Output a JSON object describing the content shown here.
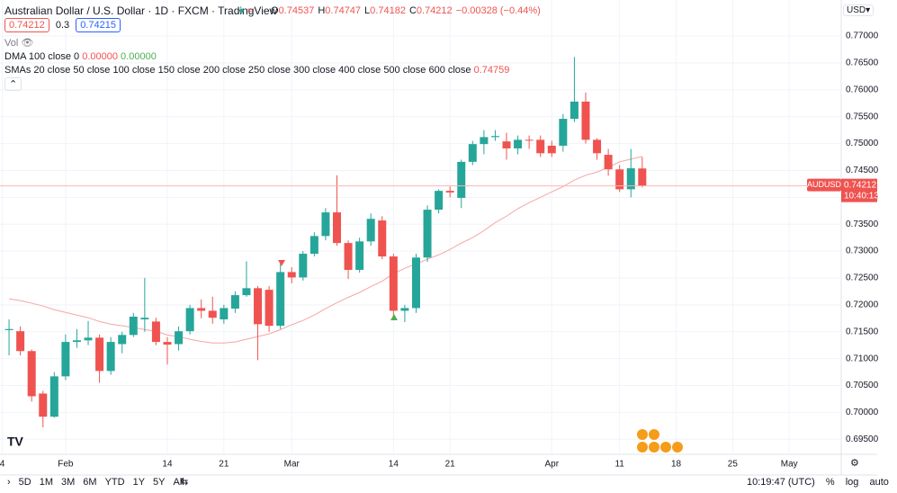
{
  "header": {
    "title": "Australian Dollar / U.S. Dollar · 1D · FXCM · TradingView",
    "ohlc": [
      {
        "k": "O",
        "v": "0.74537"
      },
      {
        "k": "H",
        "v": "0.74747"
      },
      {
        "k": "L",
        "v": "0.74182"
      },
      {
        "k": "C",
        "v": "0.74212"
      }
    ],
    "change": "−0.00328 (−0.44%)",
    "box_bid": "0.74212",
    "spread": "0.3",
    "box_ask": "0.74215",
    "currency": "USD"
  },
  "indicators": {
    "vol": "Vol",
    "dma": "DMA 100 close 0",
    "dma_v1": "0.00000",
    "dma_v2": "0.00000",
    "smas": "SMAs 20 close 50 close 100 close 150 close 200 close 250 close 300 close 400 close 500 close 600 close",
    "smas_v": "0.74759"
  },
  "toolbar": {
    "ranges": [
      "5D",
      "1M",
      "3M",
      "6M",
      "YTD",
      "1Y",
      "5Y",
      "All"
    ],
    "time": "10:19:47 (UTC)",
    "percent": "%",
    "log": "log",
    "auto": "auto"
  },
  "chart_data": {
    "type": "candlestick",
    "symbol": "AUDUSD",
    "open": [
      0.7153,
      0.7151,
      0.7114,
      0.7035,
      0.6992,
      0.7067,
      0.7131,
      0.7134,
      0.7139,
      0.7077,
      0.7127,
      0.7144,
      0.7173,
      0.7169,
      0.7131,
      0.7127,
      0.7151,
      0.7194,
      0.7189,
      0.7173,
      0.7193,
      0.7218,
      0.7231,
      0.7228,
      0.7161,
      0.7261,
      0.7251,
      0.7295,
      0.7328,
      0.7372,
      0.7315,
      0.7265,
      0.7318,
      0.7357,
      0.729,
      0.7189,
      0.7194,
      0.7288,
      0.7377,
      0.7412,
      0.7399,
      0.7466,
      0.7499,
      0.7512,
      0.7504,
      0.7491,
      0.7507,
      0.7507,
      0.7496,
      0.7496,
      0.7546,
      0.7578,
      0.7507,
      0.7479,
      0.7452,
      0.7415,
      0.74537
    ],
    "high": [
      0.7173,
      0.716,
      0.7117,
      0.704,
      0.7075,
      0.7145,
      0.7155,
      0.717,
      0.7145,
      0.714,
      0.715,
      0.7185,
      0.725,
      0.7176,
      0.714,
      0.716,
      0.72,
      0.721,
      0.7215,
      0.72,
      0.7225,
      0.7281,
      0.7235,
      0.7235,
      0.7276,
      0.727,
      0.73,
      0.7335,
      0.738,
      0.7441,
      0.732,
      0.7325,
      0.737,
      0.7365,
      0.7295,
      0.72,
      0.7295,
      0.7385,
      0.7415,
      0.742,
      0.747,
      0.7505,
      0.7525,
      0.7525,
      0.752,
      0.7515,
      0.7515,
      0.7515,
      0.7505,
      0.7555,
      0.7661,
      0.7595,
      0.751,
      0.749,
      0.746,
      0.749,
      0.74747
    ],
    "low": [
      0.7106,
      0.7106,
      0.702,
      0.6972,
      0.699,
      0.706,
      0.712,
      0.7125,
      0.7055,
      0.707,
      0.711,
      0.714,
      0.715,
      0.7125,
      0.7089,
      0.7115,
      0.7145,
      0.7175,
      0.7165,
      0.7165,
      0.7185,
      0.7215,
      0.7097,
      0.715,
      0.7155,
      0.724,
      0.7245,
      0.729,
      0.732,
      0.731,
      0.7248,
      0.726,
      0.731,
      0.7285,
      0.7173,
      0.7168,
      0.7185,
      0.728,
      0.737,
      0.74,
      0.738,
      0.746,
      0.748,
      0.7505,
      0.747,
      0.748,
      0.749,
      0.7475,
      0.7475,
      0.7485,
      0.754,
      0.75,
      0.747,
      0.744,
      0.741,
      0.74,
      0.74182
    ],
    "close": [
      0.7155,
      0.7114,
      0.703,
      0.6992,
      0.7067,
      0.7131,
      0.7134,
      0.7139,
      0.7077,
      0.7131,
      0.7144,
      0.7178,
      0.7176,
      0.7131,
      0.7126,
      0.7151,
      0.7194,
      0.7189,
      0.7176,
      0.7194,
      0.7218,
      0.7231,
      0.7164,
      0.7161,
      0.7261,
      0.7251,
      0.7295,
      0.7328,
      0.7372,
      0.7315,
      0.7265,
      0.7318,
      0.736,
      0.729,
      0.7189,
      0.7194,
      0.7288,
      0.7377,
      0.7412,
      0.7409,
      0.7466,
      0.7499,
      0.7512,
      0.7514,
      0.7491,
      0.7507,
      0.7506,
      0.7482,
      0.7482,
      0.7546,
      0.7578,
      0.7507,
      0.7482,
      0.7452,
      0.7415,
      0.7454,
      0.74212
    ],
    "up_color": "#26a69a",
    "down_color": "#ef5350",
    "sma": {
      "color": "#f4a6a4",
      "values": [
        0.7211,
        0.7208,
        0.7203,
        0.7198,
        0.7191,
        0.7186,
        0.7181,
        0.7176,
        0.7169,
        0.7164,
        0.7161,
        0.7158,
        0.7154,
        0.7151,
        0.7144,
        0.7141,
        0.7136,
        0.7132,
        0.7129,
        0.7129,
        0.7131,
        0.7136,
        0.7141,
        0.7146,
        0.7154,
        0.7163,
        0.7171,
        0.7181,
        0.7193,
        0.7204,
        0.7214,
        0.7223,
        0.7234,
        0.7244,
        0.7258,
        0.7268,
        0.7276,
        0.7285,
        0.7293,
        0.7303,
        0.7315,
        0.7325,
        0.7338,
        0.7353,
        0.7365,
        0.7379,
        0.739,
        0.74,
        0.741,
        0.742,
        0.7432,
        0.7441,
        0.7447,
        0.7456,
        0.7466,
        0.7471,
        0.74759
      ]
    },
    "last_price_label": "0.74212",
    "countdown": "10:40:13",
    "xlim": [
      -0.8,
      73.6
    ],
    "xticks": [
      {
        "value": -0.6,
        "label": "4"
      },
      {
        "value": 5,
        "label": "Feb"
      },
      {
        "value": 14,
        "label": "14"
      },
      {
        "value": 19,
        "label": "21"
      },
      {
        "value": 25,
        "label": "Mar"
      },
      {
        "value": 34,
        "label": "14"
      },
      {
        "value": 39,
        "label": "21"
      },
      {
        "value": 48,
        "label": "Apr"
      },
      {
        "value": 54,
        "label": "11"
      },
      {
        "value": 59,
        "label": "18"
      },
      {
        "value": 64,
        "label": "25"
      },
      {
        "value": 69,
        "label": "May"
      }
    ],
    "ylim": [
      0.6922,
      0.7767
    ],
    "yticks": [
      {
        "value": 0.695,
        "label": "0.69500"
      },
      {
        "value": 0.7,
        "label": "0.70000"
      },
      {
        "value": 0.705,
        "label": "0.70500"
      },
      {
        "value": 0.71,
        "label": "0.71000"
      },
      {
        "value": 0.715,
        "label": "0.71500"
      },
      {
        "value": 0.72,
        "label": "0.72000"
      },
      {
        "value": 0.725,
        "label": "0.72500"
      },
      {
        "value": 0.73,
        "label": "0.73000"
      },
      {
        "value": 0.735,
        "label": "0.73500"
      },
      {
        "value": 0.74,
        "label": "0.74000"
      },
      {
        "value": 0.745,
        "label": "0.74500"
      },
      {
        "value": 0.75,
        "label": "0.75000"
      },
      {
        "value": 0.755,
        "label": "0.75500"
      },
      {
        "value": 0.76,
        "label": "0.76000"
      },
      {
        "value": 0.765,
        "label": "0.76500"
      },
      {
        "value": 0.77,
        "label": "0.77000"
      }
    ],
    "grid": true
  }
}
